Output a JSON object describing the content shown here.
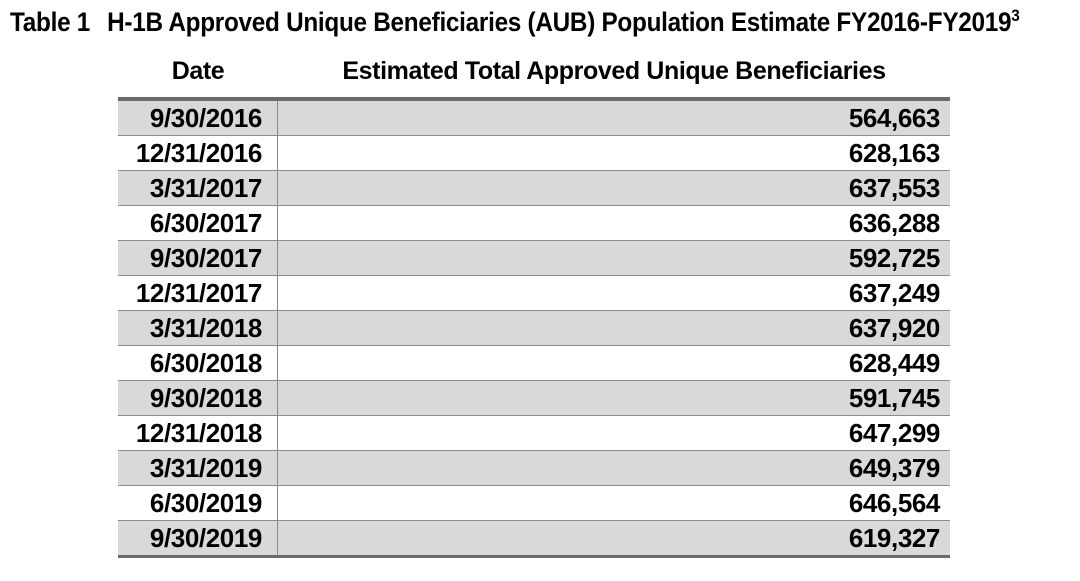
{
  "title": {
    "label": "Table 1",
    "text": "H-1B Approved Unique Beneficiaries (AUB) Population Estimate FY2016-FY2019",
    "superscript": "3"
  },
  "table": {
    "columns": [
      {
        "label": "Date"
      },
      {
        "label": "Estimated Total Approved Unique Beneficiaries"
      }
    ],
    "rows": [
      {
        "date": "9/30/2016",
        "value": "564,663"
      },
      {
        "date": "12/31/2016",
        "value": "628,163"
      },
      {
        "date": "3/31/2017",
        "value": "637,553"
      },
      {
        "date": "6/30/2017",
        "value": "636,288"
      },
      {
        "date": "9/30/2017",
        "value": "592,725"
      },
      {
        "date": "12/31/2017",
        "value": "637,249"
      },
      {
        "date": "3/31/2018",
        "value": "637,920"
      },
      {
        "date": "6/30/2018",
        "value": "628,449"
      },
      {
        "date": "9/30/2018",
        "value": "591,745"
      },
      {
        "date": "12/31/2018",
        "value": "647,299"
      },
      {
        "date": "3/31/2019",
        "value": "649,379"
      },
      {
        "date": "6/30/2019",
        "value": "646,564"
      },
      {
        "date": "9/30/2019",
        "value": "619,327"
      }
    ]
  },
  "colors": {
    "page_bg": "#ffffff",
    "row_shade": "#d9d9d9",
    "row_plain": "#ffffff",
    "border_thick": "#6b6b6b",
    "border_thin": "#8a8a8a",
    "text": "#000000"
  },
  "chart_data": {
    "type": "table",
    "title": "Table 1 H-1B Approved Unique Beneficiaries (AUB) Population Estimate FY2016-FY2019 [3]",
    "columns": [
      "Date",
      "Estimated Total Approved Unique Beneficiaries"
    ],
    "rows": [
      [
        "9/30/2016",
        564663
      ],
      [
        "12/31/2016",
        628163
      ],
      [
        "3/31/2017",
        637553
      ],
      [
        "6/30/2017",
        636288
      ],
      [
        "9/30/2017",
        592725
      ],
      [
        "12/31/2017",
        637249
      ],
      [
        "3/31/2018",
        637920
      ],
      [
        "6/30/2018",
        628449
      ],
      [
        "9/30/2018",
        591745
      ],
      [
        "12/31/2018",
        647299
      ],
      [
        "3/31/2019",
        649379
      ],
      [
        "6/30/2019",
        646564
      ],
      [
        "9/30/2019",
        619327
      ]
    ],
    "layout_hints": {
      "alternating_row_shading": true,
      "first_row_shaded": true,
      "values_right_aligned": true,
      "headers_centered": true
    }
  }
}
